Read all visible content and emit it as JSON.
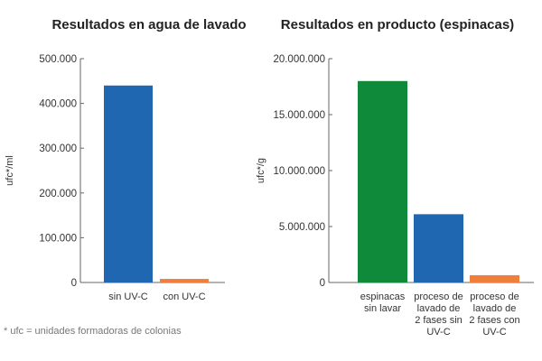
{
  "footnote": "* ufc = unidades formadoras de colonias",
  "chart_data": [
    {
      "type": "bar",
      "title": "Resultados en agua de lavado",
      "xlabel": "",
      "ylabel": "ufc*/ml",
      "ylim": [
        0,
        500000
      ],
      "yticks": [
        0,
        100000,
        200000,
        300000,
        400000,
        500000
      ],
      "ytick_labels": [
        "0",
        "100.000",
        "200.000",
        "300.000",
        "400.000",
        "500.000"
      ],
      "categories": [
        [
          "sin UV-C"
        ],
        [
          "con UV-C"
        ]
      ],
      "values": [
        440000,
        8000
      ],
      "colors": [
        "#1f67b1",
        "#f07f3c"
      ]
    },
    {
      "type": "bar",
      "title": "Resultados en producto (espinacas)",
      "xlabel": "",
      "ylabel": "ufc*/g",
      "ylim": [
        0,
        20000000
      ],
      "yticks": [
        0,
        5000000,
        10000000,
        15000000,
        20000000
      ],
      "ytick_labels": [
        "0",
        "5.000.000",
        "10.000.000",
        "15.000.000",
        "20.000.000"
      ],
      "categories": [
        [
          "espinacas",
          "sin lavar"
        ],
        [
          "proceso de",
          "lavado de",
          "2 fases sin",
          "UV-C"
        ],
        [
          "proceso de",
          "lavado de",
          "2 fases con",
          "UV-C"
        ]
      ],
      "values": [
        18000000,
        6100000,
        650000
      ],
      "colors": [
        "#0f8a3a",
        "#1f67b1",
        "#f07f3c"
      ]
    }
  ]
}
